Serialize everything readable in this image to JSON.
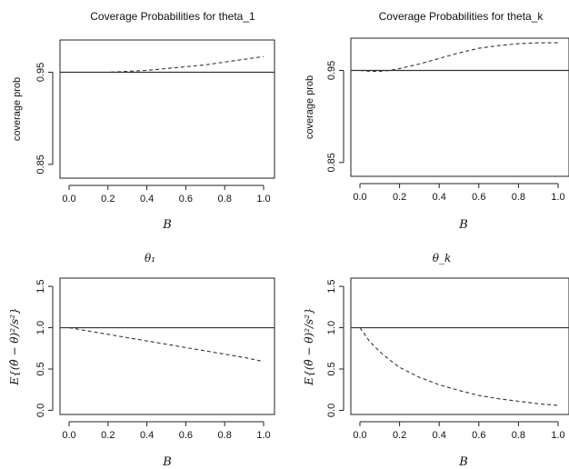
{
  "chart_data": [
    {
      "type": "line",
      "title": "Coverage Probabilities for theta_1",
      "xlabel": "B",
      "ylabel": "coverage prob",
      "xlim": [
        0,
        1
      ],
      "ylim": [
        0.835,
        0.985
      ],
      "xticks": [
        "0.0",
        "0.2",
        "0.4",
        "0.6",
        "0.8",
        "1.0"
      ],
      "yticks": [
        {
          "v": 0.85,
          "label": "0.85"
        },
        {
          "v": 0.95,
          "label": "0.95"
        }
      ],
      "reference_line": 0.95,
      "series": [
        {
          "style": "dashed",
          "x": [
            0.15,
            0.2,
            0.3,
            0.4,
            0.5,
            0.6,
            0.7,
            0.8,
            0.9,
            1.0
          ],
          "y": [
            0.95,
            0.95,
            0.951,
            0.952,
            0.954,
            0.956,
            0.958,
            0.961,
            0.964,
            0.967
          ]
        }
      ]
    },
    {
      "type": "line",
      "title": "Coverage Probabilities for theta_k",
      "xlabel": "B",
      "ylabel": "coverage prob",
      "xlim": [
        0,
        1
      ],
      "ylim": [
        0.835,
        0.985
      ],
      "xticks": [
        "0.0",
        "0.2",
        "0.4",
        "0.6",
        "0.8",
        "1.0"
      ],
      "yticks": [
        {
          "v": 0.85,
          "label": "0.85"
        },
        {
          "v": 0.95,
          "label": "0.95"
        }
      ],
      "reference_line": 0.95,
      "series": [
        {
          "style": "dashed",
          "x": [
            0.0,
            0.05,
            0.1,
            0.15,
            0.2,
            0.3,
            0.4,
            0.5,
            0.6,
            0.7,
            0.8,
            0.9,
            1.0
          ],
          "y": [
            0.95,
            0.949,
            0.949,
            0.95,
            0.952,
            0.957,
            0.963,
            0.969,
            0.974,
            0.977,
            0.979,
            0.98,
            0.98
          ]
        }
      ]
    },
    {
      "type": "line",
      "title": "θ₁",
      "xlabel": "B",
      "ylabel": "E{(θ̂ − θ)²/s²}",
      "xlim": [
        0,
        1
      ],
      "ylim": [
        -0.05,
        1.6
      ],
      "xticks": [
        "0.0",
        "0.2",
        "0.4",
        "0.6",
        "0.8",
        "1.0"
      ],
      "yticks": [
        {
          "v": 0.0,
          "label": "0.0"
        },
        {
          "v": 0.5,
          "label": "0.5"
        },
        {
          "v": 1.0,
          "label": "1.0"
        },
        {
          "v": 1.5,
          "label": "1.5"
        }
      ],
      "reference_line": 1.0,
      "series": [
        {
          "style": "dashed",
          "x": [
            0.0,
            0.1,
            0.2,
            0.3,
            0.4,
            0.5,
            0.6,
            0.7,
            0.8,
            0.9,
            1.0
          ],
          "y": [
            1.0,
            0.96,
            0.92,
            0.88,
            0.84,
            0.8,
            0.76,
            0.72,
            0.68,
            0.64,
            0.59
          ]
        }
      ]
    },
    {
      "type": "line",
      "title": "θ_k",
      "xlabel": "B",
      "ylabel": "E{(θ̂ − θ)²/s²}",
      "xlim": [
        0,
        1
      ],
      "ylim": [
        -0.05,
        1.6
      ],
      "xticks": [
        "0.0",
        "0.2",
        "0.4",
        "0.6",
        "0.8",
        "1.0"
      ],
      "yticks": [
        {
          "v": 0.0,
          "label": "0.0"
        },
        {
          "v": 0.5,
          "label": "0.5"
        },
        {
          "v": 1.0,
          "label": "1.0"
        },
        {
          "v": 1.5,
          "label": "1.5"
        }
      ],
      "reference_line": 1.0,
      "series": [
        {
          "style": "dashed",
          "x": [
            0.0,
            0.05,
            0.1,
            0.15,
            0.2,
            0.3,
            0.4,
            0.5,
            0.6,
            0.7,
            0.8,
            0.9,
            1.0
          ],
          "y": [
            1.0,
            0.83,
            0.71,
            0.61,
            0.52,
            0.4,
            0.31,
            0.24,
            0.18,
            0.14,
            0.11,
            0.08,
            0.06
          ]
        }
      ]
    }
  ]
}
